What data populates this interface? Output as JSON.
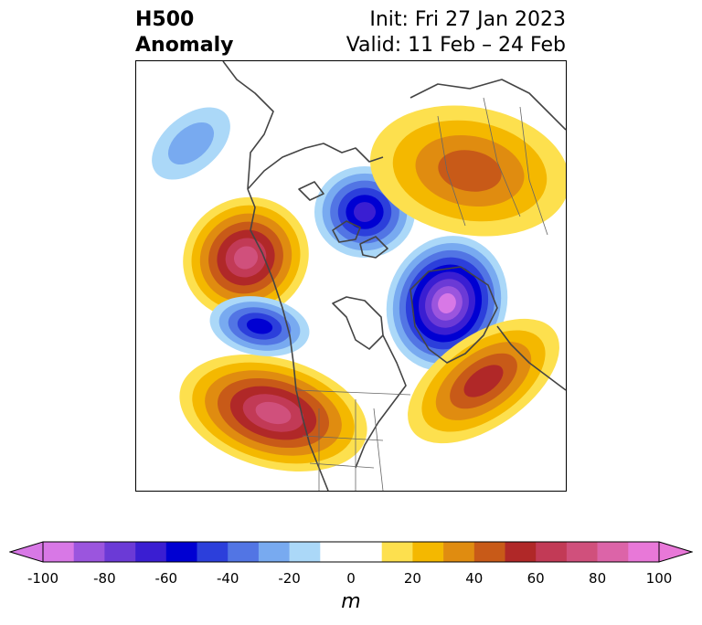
{
  "title": {
    "line1": "H500",
    "line2": "Anomaly",
    "init": "Init: Fri 27 Jan 2023",
    "valid": "Valid: 11 Feb – 24 Feb"
  },
  "colorbar": {
    "unit": "m",
    "ticks": [
      "-100",
      "-80",
      "-60",
      "-40",
      "-20",
      "0",
      "20",
      "40",
      "60",
      "80",
      "100"
    ],
    "colors": [
      "#d878e6",
      "#9b55de",
      "#6b3ad6",
      "#3a1ed2",
      "#0000d2",
      "#2c3fdb",
      "#5275e4",
      "#78aaf0",
      "#abd8f8",
      "#ffffff",
      "#ffffff",
      "#fde04e",
      "#f4b800",
      "#e08c10",
      "#c85a18",
      "#b02828",
      "#c23a56",
      "#d0507c",
      "#dc64a8",
      "#e878d8"
    ]
  },
  "anomaly_centers": [
    {
      "name": "pacific-ridge",
      "value": 70
    },
    {
      "name": "western-us-ridge",
      "value": 75
    },
    {
      "name": "atlantic-trough",
      "value": -95
    },
    {
      "name": "arctic-low",
      "value": -65
    },
    {
      "name": "pacific-trough",
      "value": -50
    },
    {
      "name": "east-atlantic-ridge",
      "value": 50
    },
    {
      "name": "siberian-ridge",
      "value": 45
    },
    {
      "name": "bering-trough",
      "value": -20
    }
  ]
}
